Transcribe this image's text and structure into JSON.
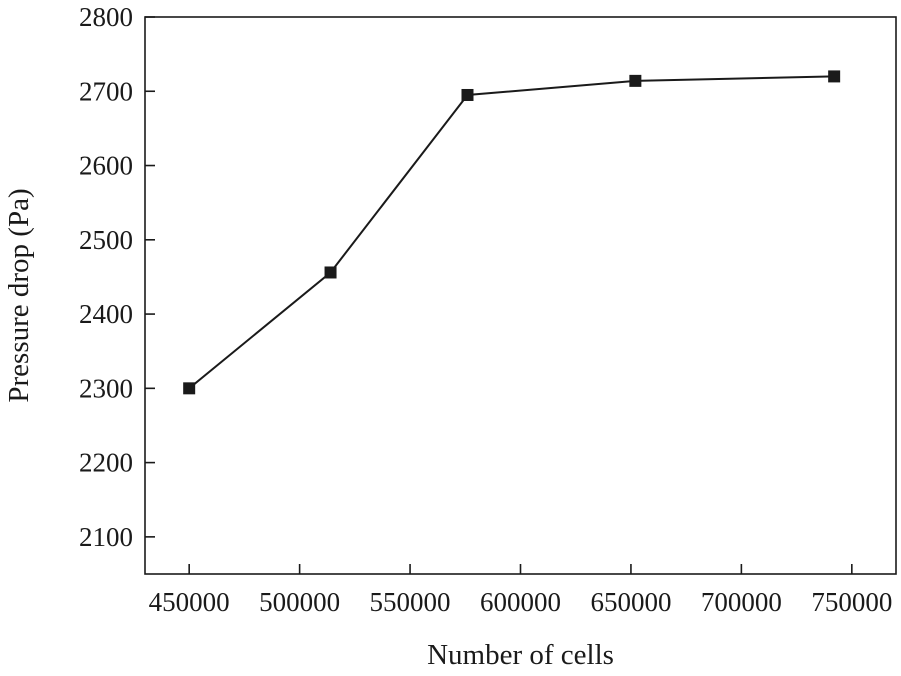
{
  "chart_data": {
    "type": "line",
    "title": "",
    "xlabel": "Number of cells",
    "ylabel": "Pressure drop (Pa)",
    "xlim": [
      430000,
      770000
    ],
    "ylim": [
      2050,
      2800
    ],
    "x_ticks": [
      450000,
      500000,
      550000,
      600000,
      650000,
      700000,
      750000
    ],
    "x_tick_labels": [
      "450000",
      "500000",
      "550000",
      "600000",
      "650000",
      "700000",
      "750000"
    ],
    "y_ticks": [
      2100,
      2200,
      2300,
      2400,
      2500,
      2600,
      2700,
      2800
    ],
    "y_tick_labels": [
      "2100",
      "2200",
      "2300",
      "2400",
      "2500",
      "2600",
      "2700",
      "2800"
    ],
    "grid": false,
    "legend": "none",
    "marker": "square",
    "line_color": "#1a1a1a",
    "series": [
      {
        "x": [
          450000,
          514000,
          576000,
          652000,
          742000
        ],
        "y": [
          2300,
          2456,
          2695,
          2714,
          2720
        ]
      }
    ]
  }
}
